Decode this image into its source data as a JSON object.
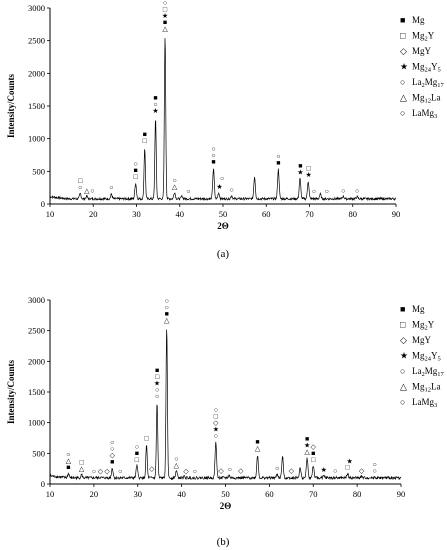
{
  "phase_symbols": {
    "Mg": "■",
    "Mg2Y": "□",
    "MgY": "◇",
    "Mg24Y5": "★",
    "La2Mg17": "○",
    "Mg12La": "△",
    "LaMg3": "○"
  },
  "chart_data": [
    {
      "type": "line",
      "caption": "(a)",
      "xlabel": "2Θ",
      "ylabel": "Intensity/Counts",
      "xlim": [
        10,
        90
      ],
      "ylim": [
        0,
        3000
      ],
      "xticks": [
        10,
        20,
        30,
        40,
        50,
        60,
        70,
        80,
        90
      ],
      "yticks": [
        0,
        500,
        1000,
        1500,
        2000,
        2500,
        3000
      ],
      "grid": false,
      "legend_position": "top-right",
      "legend": [
        {
          "phase": "Mg",
          "label": "Mg"
        },
        {
          "phase": "Mg2Y",
          "label": "Mg",
          "sub": "2",
          "suffix": "Y"
        },
        {
          "phase": "MgY",
          "label": "MgY"
        },
        {
          "phase": "Mg24Y5",
          "label": "Mg",
          "sub": "24",
          "suffix": "Y",
          "sub2": "5"
        },
        {
          "phase": "La2Mg17",
          "label": "La",
          "sub": "2",
          "suffix": "Mg",
          "sub2": "17"
        },
        {
          "phase": "Mg12La",
          "label": "Mg",
          "sub": "12",
          "suffix": "La"
        },
        {
          "phase": "LaMg3",
          "label": "LaMg",
          "sub": "3"
        }
      ],
      "baseline": 80,
      "noise": 18,
      "peaks": [
        {
          "x": 17.0,
          "y": 160,
          "w": 0.25
        },
        {
          "x": 18.5,
          "y": 120,
          "w": 0.25
        },
        {
          "x": 24.2,
          "y": 150,
          "w": 0.25
        },
        {
          "x": 29.8,
          "y": 320,
          "w": 0.25
        },
        {
          "x": 31.9,
          "y": 860,
          "w": 0.22
        },
        {
          "x": 34.4,
          "y": 1320,
          "w": 0.22
        },
        {
          "x": 36.6,
          "y": 2580,
          "w": 0.22
        },
        {
          "x": 38.8,
          "y": 180,
          "w": 0.25
        },
        {
          "x": 40.5,
          "y": 120,
          "w": 0.25
        },
        {
          "x": 47.8,
          "y": 540,
          "w": 0.25
        },
        {
          "x": 49.0,
          "y": 170,
          "w": 0.25
        },
        {
          "x": 52.0,
          "y": 130,
          "w": 0.25
        },
        {
          "x": 57.3,
          "y": 420,
          "w": 0.25
        },
        {
          "x": 62.8,
          "y": 530,
          "w": 0.25
        },
        {
          "x": 67.8,
          "y": 390,
          "w": 0.25
        },
        {
          "x": 69.7,
          "y": 350,
          "w": 0.25
        },
        {
          "x": 72.5,
          "y": 150,
          "w": 0.25
        },
        {
          "x": 77.8,
          "y": 120,
          "w": 0.25
        },
        {
          "x": 81.0,
          "y": 110,
          "w": 0.25
        }
      ],
      "markers": [
        {
          "x": 17.0,
          "y": 190,
          "phases": [
            "LaMg3",
            "Mg2Y"
          ]
        },
        {
          "x": 18.5,
          "y": 140,
          "phases": [
            "Mg12La"
          ]
        },
        {
          "x": 19.8,
          "y": 140,
          "phases": [
            "La2Mg17"
          ]
        },
        {
          "x": 24.2,
          "y": 190,
          "phases": [
            "LaMg3"
          ]
        },
        {
          "x": 29.8,
          "y": 350,
          "phases": [
            "Mg2Y",
            "Mg",
            "La2Mg17"
          ]
        },
        {
          "x": 31.9,
          "y": 900,
          "phases": [
            "Mg2Y",
            "Mg"
          ]
        },
        {
          "x": 34.4,
          "y": 1360,
          "phases": [
            "Mg24Y5",
            "La2Mg17",
            "Mg"
          ]
        },
        {
          "x": 36.6,
          "y": 2620,
          "phases": [
            "Mg12La",
            "Mg",
            "Mg24Y5",
            "Mg2Y",
            "La2Mg17",
            "LaMg3"
          ]
        },
        {
          "x": 38.8,
          "y": 200,
          "phases": [
            "Mg12La",
            "La2Mg17"
          ]
        },
        {
          "x": 42.0,
          "y": 130,
          "phases": [
            "La2Mg17"
          ]
        },
        {
          "x": 47.8,
          "y": 580,
          "phases": [
            "Mg",
            "La2Mg17",
            "LaMg3"
          ]
        },
        {
          "x": 49.2,
          "y": 200,
          "phases": [
            "Mg24Y5"
          ]
        },
        {
          "x": 49.8,
          "y": 330,
          "phases": [
            "La2Mg17"
          ]
        },
        {
          "x": 52.0,
          "y": 150,
          "phases": [
            "La2Mg17"
          ]
        },
        {
          "x": 62.8,
          "y": 570,
          "phases": [
            "Mg",
            "La2Mg17"
          ]
        },
        {
          "x": 67.9,
          "y": 420,
          "phases": [
            "Mg24Y5",
            "Mg"
          ]
        },
        {
          "x": 69.8,
          "y": 380,
          "phases": [
            "Mg24Y5",
            "Mg2Y"
          ]
        },
        {
          "x": 71.0,
          "y": 130,
          "phases": [
            "La2Mg17"
          ]
        },
        {
          "x": 74.0,
          "y": 130,
          "phases": [
            "La2Mg17"
          ]
        },
        {
          "x": 77.8,
          "y": 140,
          "phases": [
            "La2Mg17"
          ]
        },
        {
          "x": 81.0,
          "y": 140,
          "phases": [
            "La2Mg17"
          ]
        }
      ]
    },
    {
      "type": "line",
      "caption": "(b)",
      "xlabel": "2Θ",
      "ylabel": "Intensity/Counts",
      "xlim": [
        10,
        90
      ],
      "ylim": [
        0,
        3000
      ],
      "xticks": [
        10,
        20,
        30,
        40,
        50,
        60,
        70,
        80,
        90
      ],
      "yticks": [
        0,
        500,
        1000,
        1500,
        2000,
        2500,
        3000
      ],
      "grid": false,
      "legend_position": "top-right",
      "legend": [
        {
          "phase": "Mg",
          "label": "Mg"
        },
        {
          "phase": "Mg2Y",
          "label": "Mg",
          "sub": "2",
          "suffix": "Y"
        },
        {
          "phase": "MgY",
          "label": "MgY"
        },
        {
          "phase": "Mg24Y5",
          "label": "Mg",
          "sub": "24",
          "suffix": "Y",
          "sub2": "5"
        },
        {
          "phase": "La2Mg17",
          "label": "La",
          "sub": "2",
          "suffix": "Mg",
          "sub2": "17"
        },
        {
          "phase": "Mg12La",
          "label": "Mg",
          "sub": "12",
          "suffix": "La"
        },
        {
          "phase": "LaMg3",
          "label": "LaMg",
          "sub": "3"
        }
      ],
      "baseline": 100,
      "noise": 22,
      "peaks": [
        {
          "x": 14.2,
          "y": 170,
          "w": 0.25
        },
        {
          "x": 17.2,
          "y": 150,
          "w": 0.25
        },
        {
          "x": 21.5,
          "y": 110,
          "w": 0.25
        },
        {
          "x": 24.2,
          "y": 260,
          "w": 0.25
        },
        {
          "x": 29.8,
          "y": 300,
          "w": 0.25
        },
        {
          "x": 32.0,
          "y": 640,
          "w": 0.22
        },
        {
          "x": 34.4,
          "y": 1320,
          "w": 0.22
        },
        {
          "x": 36.6,
          "y": 2560,
          "w": 0.22
        },
        {
          "x": 38.8,
          "y": 220,
          "w": 0.25
        },
        {
          "x": 40.6,
          "y": 120,
          "w": 0.25
        },
        {
          "x": 47.8,
          "y": 680,
          "w": 0.25
        },
        {
          "x": 50.8,
          "y": 140,
          "w": 0.25
        },
        {
          "x": 57.3,
          "y": 470,
          "w": 0.25
        },
        {
          "x": 61.8,
          "y": 160,
          "w": 0.25
        },
        {
          "x": 63.0,
          "y": 440,
          "w": 0.25
        },
        {
          "x": 67.0,
          "y": 260,
          "w": 0.25
        },
        {
          "x": 68.6,
          "y": 420,
          "w": 0.25
        },
        {
          "x": 70.0,
          "y": 300,
          "w": 0.25
        },
        {
          "x": 72.4,
          "y": 130,
          "w": 0.25
        },
        {
          "x": 77.8,
          "y": 170,
          "w": 0.25
        },
        {
          "x": 81.0,
          "y": 120,
          "w": 0.25
        },
        {
          "x": 84.0,
          "y": 110,
          "w": 0.25
        }
      ],
      "markers": [
        {
          "x": 14.2,
          "y": 200,
          "phases": [
            "Mg",
            "Mg12La",
            "LaMg3"
          ]
        },
        {
          "x": 17.2,
          "y": 180,
          "phases": [
            "Mg12La",
            "Mg2Y"
          ]
        },
        {
          "x": 20.0,
          "y": 140,
          "phases": [
            "La2Mg17"
          ]
        },
        {
          "x": 21.5,
          "y": 140,
          "phases": [
            "MgY"
          ]
        },
        {
          "x": 23.0,
          "y": 140,
          "phases": [
            "MgY"
          ]
        },
        {
          "x": 24.2,
          "y": 290,
          "phases": [
            "Mg",
            "MgY",
            "La2Mg17",
            "LaMg3"
          ]
        },
        {
          "x": 26.0,
          "y": 140,
          "phases": [
            "La2Mg17"
          ]
        },
        {
          "x": 29.8,
          "y": 330,
          "phases": [
            "Mg2Y",
            "Mg",
            "La2Mg17"
          ]
        },
        {
          "x": 32.0,
          "y": 680,
          "phases": [
            "Mg2Y"
          ]
        },
        {
          "x": 33.2,
          "y": 180,
          "phases": [
            "MgY"
          ]
        },
        {
          "x": 34.4,
          "y": 1360,
          "phases": [
            "La2Mg17",
            "La2Mg17",
            "Mg24Y5",
            "Mg2Y",
            "Mg"
          ]
        },
        {
          "x": 36.6,
          "y": 2600,
          "phases": [
            "Mg12La",
            "Mg",
            "La2Mg17",
            "LaMg3"
          ]
        },
        {
          "x": 38.8,
          "y": 240,
          "phases": [
            "Mg12La",
            "La2Mg17"
          ]
        },
        {
          "x": 41.0,
          "y": 140,
          "phases": [
            "MgY"
          ]
        },
        {
          "x": 43.0,
          "y": 140,
          "phases": [
            "La2Mg17"
          ]
        },
        {
          "x": 47.8,
          "y": 720,
          "phases": [
            "La2Mg17",
            "Mg24Y5",
            "MgY",
            "Mg2Y",
            "LaMg3"
          ]
        },
        {
          "x": 49.0,
          "y": 150,
          "phases": [
            "MgY"
          ]
        },
        {
          "x": 51.0,
          "y": 170,
          "phases": [
            "La2Mg17"
          ]
        },
        {
          "x": 53.5,
          "y": 150,
          "phases": [
            "MgY"
          ]
        },
        {
          "x": 57.3,
          "y": 510,
          "phases": [
            "Mg12La",
            "Mg"
          ]
        },
        {
          "x": 61.8,
          "y": 190,
          "phases": [
            "La2Mg17"
          ]
        },
        {
          "x": 65.0,
          "y": 150,
          "phases": [
            "MgY"
          ]
        },
        {
          "x": 68.6,
          "y": 460,
          "phases": [
            "Mg12La",
            "Mg24Y5",
            "Mg"
          ]
        },
        {
          "x": 70.0,
          "y": 330,
          "phases": [
            "Mg2Y",
            "Mg",
            "MgY"
          ]
        },
        {
          "x": 72.4,
          "y": 160,
          "phases": [
            "Mg24Y5"
          ]
        },
        {
          "x": 75.0,
          "y": 150,
          "phases": [
            "La2Mg17"
          ]
        },
        {
          "x": 77.8,
          "y": 200,
          "phases": [
            "Mg2Y"
          ]
        },
        {
          "x": 78.3,
          "y": 300,
          "phases": [
            "Mg24Y5"
          ]
        },
        {
          "x": 81.0,
          "y": 150,
          "phases": [
            "MgY"
          ]
        },
        {
          "x": 84.0,
          "y": 150,
          "phases": [
            "La2Mg17",
            "LaMg3"
          ]
        }
      ]
    }
  ]
}
